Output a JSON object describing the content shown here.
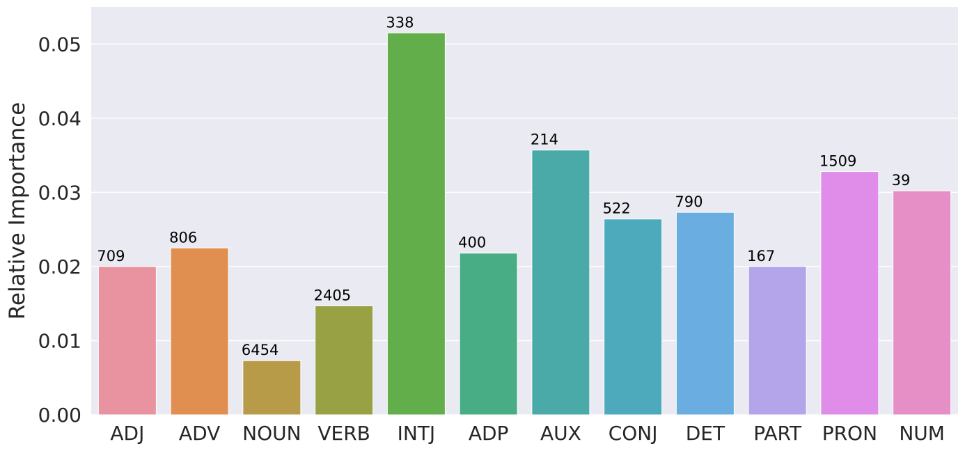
{
  "chart_data": {
    "type": "bar",
    "title": "",
    "xlabel": "",
    "ylabel": "Relative Importance",
    "ylim": [
      0,
      0.055
    ],
    "yticks": [
      "0.00",
      "0.01",
      "0.02",
      "0.03",
      "0.04",
      "0.05"
    ],
    "ytick_values": [
      0,
      0.01,
      0.02,
      0.03,
      0.04,
      0.05
    ],
    "grid": true,
    "categories": [
      "ADJ",
      "ADV",
      "NOUN",
      "VERB",
      "INTJ",
      "ADP",
      "AUX",
      "CONJ",
      "DET",
      "PART",
      "PRON",
      "NUM"
    ],
    "values": [
      0.02,
      0.0225,
      0.0073,
      0.0147,
      0.0515,
      0.0218,
      0.0357,
      0.0264,
      0.0273,
      0.02,
      0.0328,
      0.0302
    ],
    "bar_labels": [
      "709",
      "806",
      "6454",
      "2405",
      "338",
      "400",
      "214",
      "522",
      "790",
      "167",
      "1509",
      "39"
    ],
    "colors": [
      "#e8939f",
      "#e08f50",
      "#b79b48",
      "#98a245",
      "#61ae4a",
      "#48ad84",
      "#4aaaa7",
      "#4da9bc",
      "#6aade0",
      "#b4a5ea",
      "#df8de9",
      "#e68ec6"
    ],
    "background": "#eaeaf2",
    "grid_color": "#ffffff"
  }
}
